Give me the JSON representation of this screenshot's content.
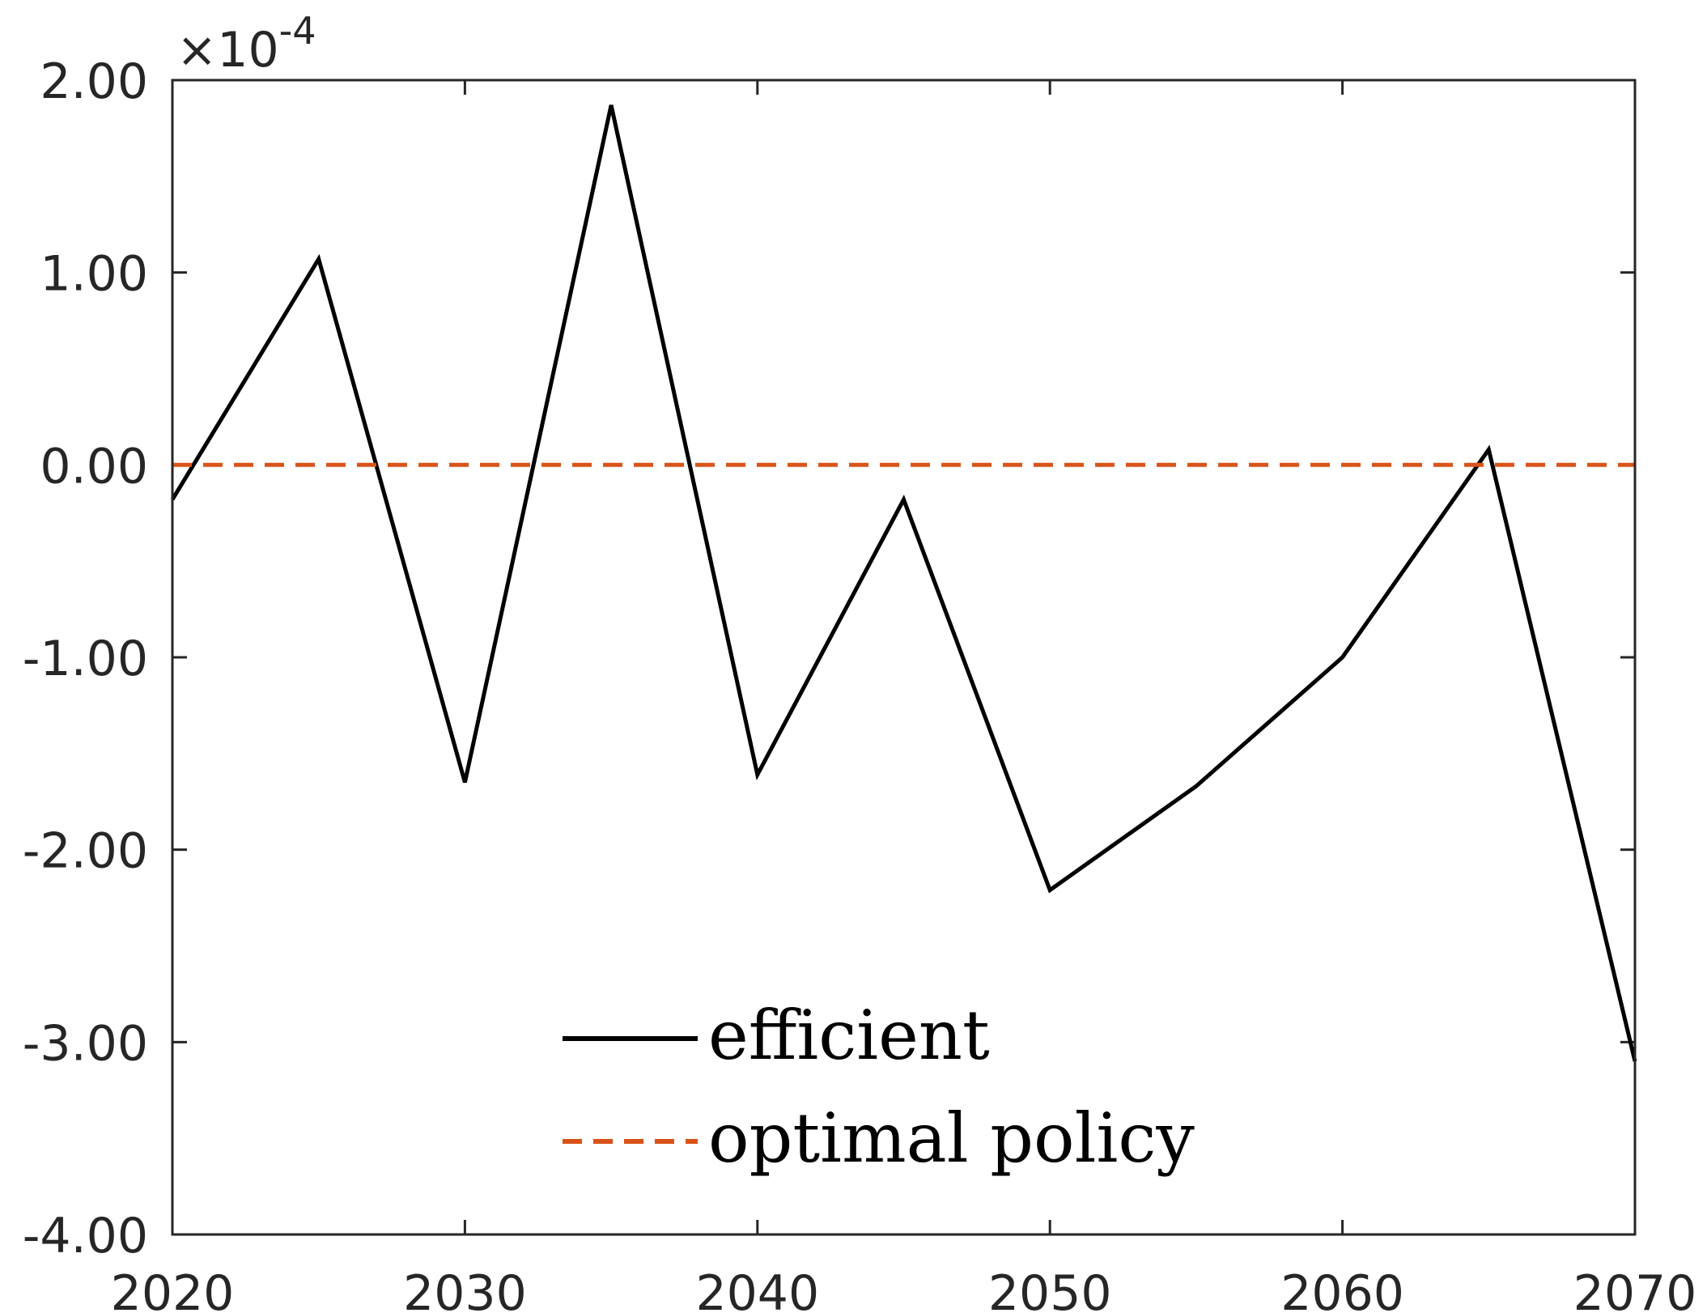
{
  "chart_data": {
    "type": "line",
    "x": [
      2020,
      2025,
      2030,
      2035,
      2040,
      2045,
      2050,
      2055,
      2060,
      2065,
      2070
    ],
    "series": [
      {
        "name": "efficient",
        "color": "#000000",
        "style": "solid",
        "values": [
          -0.18,
          1.07,
          -1.65,
          1.87,
          -1.61,
          -0.18,
          -2.21,
          -1.67,
          -1.0,
          0.08,
          -3.1
        ]
      },
      {
        "name": "optimal policy",
        "color": "#D95319",
        "style": "dashed",
        "values": [
          0,
          0,
          0,
          0,
          0,
          0,
          0,
          0,
          0,
          0,
          0
        ]
      }
    ],
    "xlim": [
      2020,
      2070
    ],
    "ylim": [
      -4,
      2
    ],
    "xticks": [
      "2020",
      "2030",
      "2040",
      "2050",
      "2060",
      "2070"
    ],
    "yticks": [
      "-4.00",
      "-3.00",
      "-2.00",
      "-1.00",
      "0.00",
      "1.00",
      "2.00"
    ],
    "y_exponent": {
      "base": "×10",
      "power": "-4"
    },
    "title": "",
    "xlabel": "",
    "ylabel": "",
    "legend_position": "bottom-center",
    "grid": false
  }
}
